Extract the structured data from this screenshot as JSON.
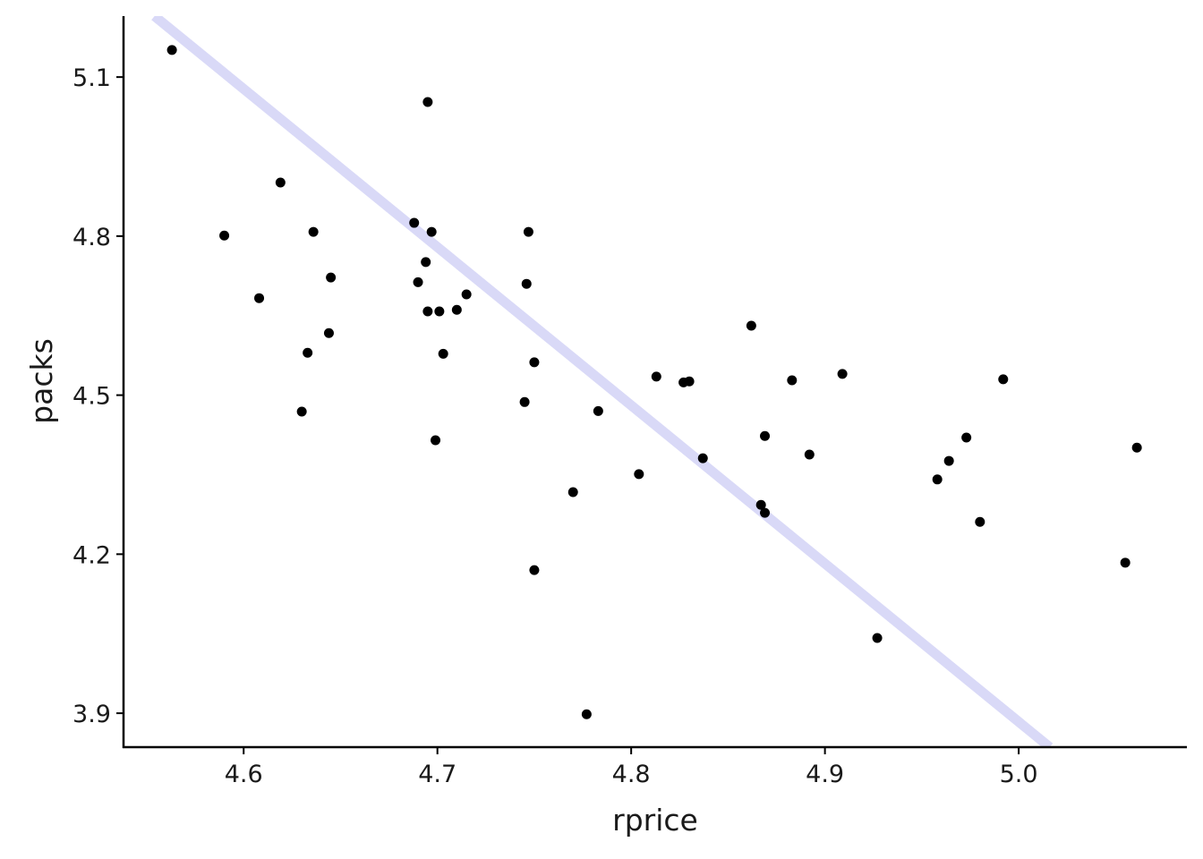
{
  "chart_data": {
    "type": "scatter",
    "x_label": "rprice",
    "y_label": "packs",
    "xlim": [
      4.538,
      5.0868
    ],
    "ylim": [
      3.836,
      5.215
    ],
    "xticks": [
      4.6,
      4.7,
      4.8,
      4.9,
      {
        "value": 5,
        "label": "5.0"
      }
    ],
    "yticks": [
      3.9,
      4.2,
      4.5,
      4.8,
      5.1
    ],
    "color": "#000000",
    "trend_line": {
      "x": [
        4.554,
        5.016
      ],
      "y": [
        5.215,
        3.836
      ],
      "color": "#d9d9f7"
    },
    "x": [
      4.563,
      4.59,
      4.619,
      4.608,
      4.636,
      4.645,
      4.633,
      4.644,
      4.63,
      4.695,
      4.688,
      4.697,
      4.694,
      4.69,
      4.695,
      4.701,
      4.71,
      4.715,
      4.703,
      4.699,
      4.747,
      4.746,
      4.75,
      4.745,
      4.75,
      4.77,
      4.783,
      4.777,
      4.804,
      4.813,
      4.827,
      4.83,
      4.837,
      4.862,
      4.869,
      4.867,
      4.869,
      4.883,
      4.892,
      4.909,
      4.927,
      4.958,
      4.964,
      4.973,
      4.98,
      4.992,
      5.055,
      5.061
    ],
    "values": [
      5.151,
      4.801,
      4.901,
      4.683,
      4.808,
      4.722,
      4.58,
      4.617,
      4.469,
      5.053,
      4.825,
      4.808,
      4.751,
      4.713,
      4.658,
      4.658,
      4.661,
      4.69,
      4.578,
      4.415,
      4.808,
      4.71,
      4.562,
      4.487,
      4.17,
      4.317,
      4.47,
      3.898,
      4.351,
      4.535,
      4.524,
      4.526,
      4.381,
      4.631,
      4.423,
      4.293,
      4.278,
      4.528,
      4.388,
      4.54,
      4.042,
      4.341,
      4.376,
      4.42,
      4.261,
      4.53,
      4.184,
      4.401
    ]
  }
}
